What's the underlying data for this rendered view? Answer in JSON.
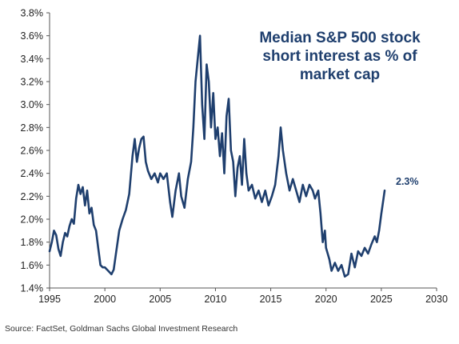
{
  "chart_data": {
    "type": "line",
    "title_lines": [
      "Median S&P 500 stock",
      "short interest as % of",
      "market cap"
    ],
    "xlabel": "",
    "ylabel": "",
    "xlim": [
      1995,
      2030
    ],
    "ylim": [
      1.4,
      3.8
    ],
    "x_ticks": [
      "1995",
      "2000",
      "2005",
      "2010",
      "2015",
      "2020",
      "2025",
      "2030"
    ],
    "y_ticks": [
      "1.4%",
      "1.6%",
      "1.8%",
      "2.0%",
      "2.2%",
      "2.4%",
      "2.6%",
      "2.8%",
      "3.0%",
      "3.2%",
      "3.4%",
      "3.6%",
      "3.8%"
    ],
    "end_label": "2.3%",
    "grid": false,
    "legend": "none",
    "series": [
      {
        "color": "#1f3f6e",
        "points": [
          [
            1995.0,
            1.72
          ],
          [
            1995.2,
            1.8
          ],
          [
            1995.4,
            1.9
          ],
          [
            1995.6,
            1.86
          ],
          [
            1995.8,
            1.74
          ],
          [
            1996.0,
            1.68
          ],
          [
            1996.2,
            1.8
          ],
          [
            1996.4,
            1.88
          ],
          [
            1996.6,
            1.85
          ],
          [
            1996.8,
            1.94
          ],
          [
            1997.0,
            2.0
          ],
          [
            1997.2,
            1.96
          ],
          [
            1997.4,
            2.18
          ],
          [
            1997.6,
            2.3
          ],
          [
            1997.8,
            2.22
          ],
          [
            1998.0,
            2.28
          ],
          [
            1998.2,
            2.12
          ],
          [
            1998.4,
            2.25
          ],
          [
            1998.6,
            2.05
          ],
          [
            1998.8,
            2.1
          ],
          [
            1999.0,
            1.95
          ],
          [
            1999.2,
            1.9
          ],
          [
            1999.4,
            1.75
          ],
          [
            1999.6,
            1.6
          ],
          [
            1999.8,
            1.58
          ],
          [
            2000.0,
            1.58
          ],
          [
            2000.3,
            1.55
          ],
          [
            2000.6,
            1.52
          ],
          [
            2000.8,
            1.56
          ],
          [
            2001.0,
            1.7
          ],
          [
            2001.3,
            1.9
          ],
          [
            2001.6,
            2.0
          ],
          [
            2001.9,
            2.08
          ],
          [
            2002.2,
            2.22
          ],
          [
            2002.5,
            2.55
          ],
          [
            2002.7,
            2.7
          ],
          [
            2002.9,
            2.5
          ],
          [
            2003.1,
            2.62
          ],
          [
            2003.3,
            2.7
          ],
          [
            2003.5,
            2.72
          ],
          [
            2003.7,
            2.5
          ],
          [
            2003.9,
            2.42
          ],
          [
            2004.2,
            2.35
          ],
          [
            2004.5,
            2.4
          ],
          [
            2004.8,
            2.32
          ],
          [
            2005.0,
            2.4
          ],
          [
            2005.3,
            2.35
          ],
          [
            2005.6,
            2.4
          ],
          [
            2005.9,
            2.15
          ],
          [
            2006.1,
            2.02
          ],
          [
            2006.4,
            2.25
          ],
          [
            2006.7,
            2.4
          ],
          [
            2006.9,
            2.2
          ],
          [
            2007.2,
            2.1
          ],
          [
            2007.5,
            2.35
          ],
          [
            2007.8,
            2.5
          ],
          [
            2008.0,
            2.8
          ],
          [
            2008.2,
            3.2
          ],
          [
            2008.4,
            3.4
          ],
          [
            2008.6,
            3.6
          ],
          [
            2008.8,
            3.0
          ],
          [
            2009.0,
            2.7
          ],
          [
            2009.2,
            3.35
          ],
          [
            2009.4,
            3.2
          ],
          [
            2009.6,
            2.8
          ],
          [
            2009.8,
            3.1
          ],
          [
            2010.0,
            2.7
          ],
          [
            2010.2,
            2.8
          ],
          [
            2010.4,
            2.55
          ],
          [
            2010.6,
            2.75
          ],
          [
            2010.8,
            2.4
          ],
          [
            2011.0,
            2.9
          ],
          [
            2011.2,
            3.05
          ],
          [
            2011.4,
            2.6
          ],
          [
            2011.6,
            2.5
          ],
          [
            2011.8,
            2.2
          ],
          [
            2012.0,
            2.45
          ],
          [
            2012.2,
            2.55
          ],
          [
            2012.4,
            2.3
          ],
          [
            2012.6,
            2.7
          ],
          [
            2012.8,
            2.4
          ],
          [
            2013.0,
            2.25
          ],
          [
            2013.3,
            2.3
          ],
          [
            2013.6,
            2.18
          ],
          [
            2013.9,
            2.25
          ],
          [
            2014.2,
            2.15
          ],
          [
            2014.5,
            2.25
          ],
          [
            2014.8,
            2.12
          ],
          [
            2015.1,
            2.2
          ],
          [
            2015.4,
            2.3
          ],
          [
            2015.7,
            2.55
          ],
          [
            2015.9,
            2.8
          ],
          [
            2016.1,
            2.6
          ],
          [
            2016.4,
            2.4
          ],
          [
            2016.7,
            2.25
          ],
          [
            2017.0,
            2.35
          ],
          [
            2017.3,
            2.25
          ],
          [
            2017.6,
            2.15
          ],
          [
            2017.9,
            2.3
          ],
          [
            2018.2,
            2.2
          ],
          [
            2018.5,
            2.3
          ],
          [
            2018.8,
            2.25
          ],
          [
            2019.0,
            2.18
          ],
          [
            2019.3,
            2.25
          ],
          [
            2019.5,
            2.05
          ],
          [
            2019.7,
            1.8
          ],
          [
            2019.9,
            1.9
          ],
          [
            2020.0,
            1.75
          ],
          [
            2020.3,
            1.65
          ],
          [
            2020.5,
            1.55
          ],
          [
            2020.8,
            1.62
          ],
          [
            2021.1,
            1.55
          ],
          [
            2021.4,
            1.6
          ],
          [
            2021.7,
            1.5
          ],
          [
            2022.0,
            1.52
          ],
          [
            2022.3,
            1.7
          ],
          [
            2022.6,
            1.58
          ],
          [
            2022.9,
            1.72
          ],
          [
            2023.2,
            1.68
          ],
          [
            2023.5,
            1.75
          ],
          [
            2023.8,
            1.7
          ],
          [
            2024.1,
            1.78
          ],
          [
            2024.4,
            1.85
          ],
          [
            2024.6,
            1.8
          ],
          [
            2024.8,
            1.9
          ],
          [
            2025.0,
            2.05
          ],
          [
            2025.2,
            2.18
          ],
          [
            2025.3,
            2.25
          ]
        ]
      }
    ]
  },
  "footer": {
    "source": "Source: FactSet, Goldman Sachs Global Investment Research"
  }
}
